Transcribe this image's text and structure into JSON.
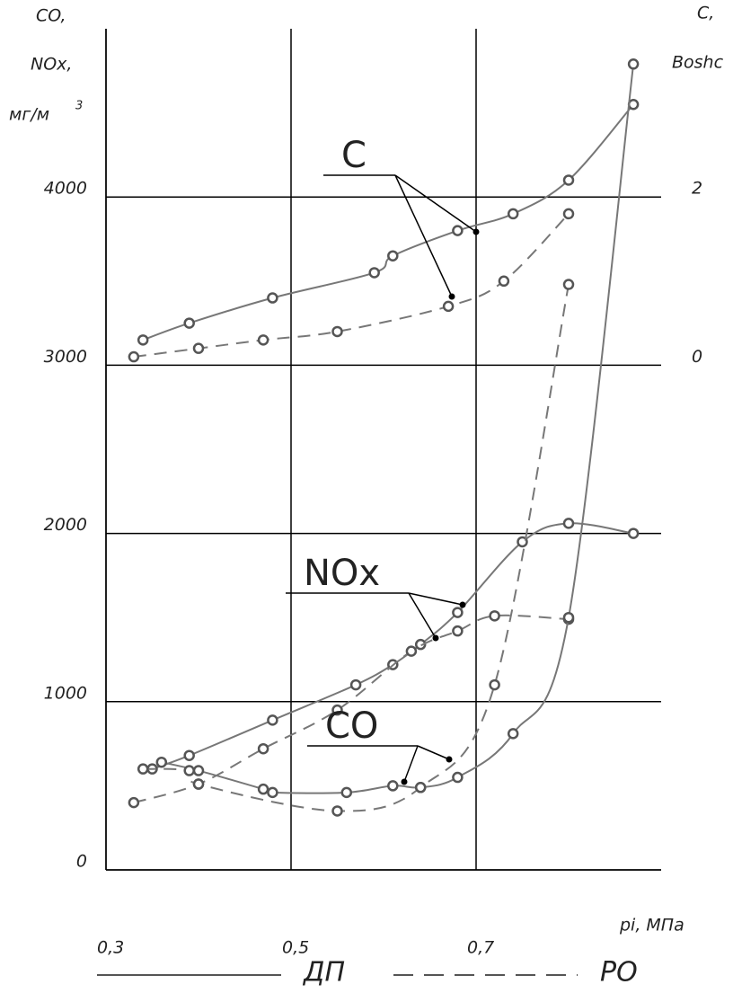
{
  "chart_data": {
    "type": "line",
    "y_label": [
      "CO,",
      "NOx,",
      "мг/м",
      "3"
    ],
    "y2_label": [
      "C,",
      "Boshc"
    ],
    "x_label": "pi, МПа",
    "xlim": [
      0.3,
      0.9
    ],
    "xticks": [
      {
        "value": 0.3,
        "label": "0,3"
      },
      {
        "value": 0.5,
        "label": "0,5"
      },
      {
        "value": 0.7,
        "label": "0,7"
      }
    ],
    "ylim": [
      0,
      5000
    ],
    "yticks": [
      0,
      1000,
      2000,
      3000,
      4000
    ],
    "y2lim": [
      -6,
      4
    ],
    "y2ticks": [
      0,
      2
    ],
    "grid": true,
    "color": "#777",
    "series": [
      {
        "axis": "y2",
        "style": "solid",
        "x": [
          0.34,
          0.39,
          0.48,
          0.59,
          0.61,
          0.68,
          0.74,
          0.8,
          0.87
        ],
        "values": [
          0.3,
          0.5,
          0.8,
          1.1,
          1.3,
          1.6,
          1.8,
          2.2,
          3.1
        ]
      },
      {
        "axis": "y2",
        "style": "dashed",
        "x": [
          0.33,
          0.4,
          0.47,
          0.55,
          0.67,
          0.73,
          0.8
        ],
        "values": [
          0.1,
          0.2,
          0.3,
          0.4,
          0.7,
          1.0,
          1.8
        ]
      },
      {
        "style": "solid",
        "x": [
          0.35,
          0.39,
          0.48,
          0.57,
          0.61,
          0.64,
          0.68,
          0.75,
          0.8,
          0.87
        ],
        "values": [
          600,
          680,
          890,
          1100,
          1220,
          1340,
          1530,
          1950,
          2060,
          2000
        ]
      },
      {
        "style": "dashed",
        "x": [
          0.33,
          0.4,
          0.47,
          0.55,
          0.63,
          0.68,
          0.72,
          0.8
        ],
        "values": [
          400,
          510,
          720,
          950,
          1300,
          1420,
          1510,
          1490
        ]
      },
      {
        "style": "solid",
        "x": [
          0.36,
          0.4,
          0.47,
          0.48,
          0.56,
          0.61,
          0.64,
          0.68,
          0.74,
          0.8,
          0.87
        ],
        "values": [
          640,
          590,
          480,
          460,
          460,
          500,
          490,
          550,
          810,
          1500,
          4790
        ]
      },
      {
        "style": "dashed",
        "x": [
          0.34,
          0.39,
          0.4,
          0.55,
          0.64,
          0.72,
          0.8
        ],
        "values": [
          600,
          590,
          510,
          350,
          490,
          1100,
          3480
        ]
      }
    ],
    "annotations": [
      "C",
      "NOx",
      "CO"
    ],
    "legend": [
      {
        "label": "ДП",
        "style": "solid"
      },
      {
        "label": "РО",
        "style": "dashed"
      }
    ]
  }
}
